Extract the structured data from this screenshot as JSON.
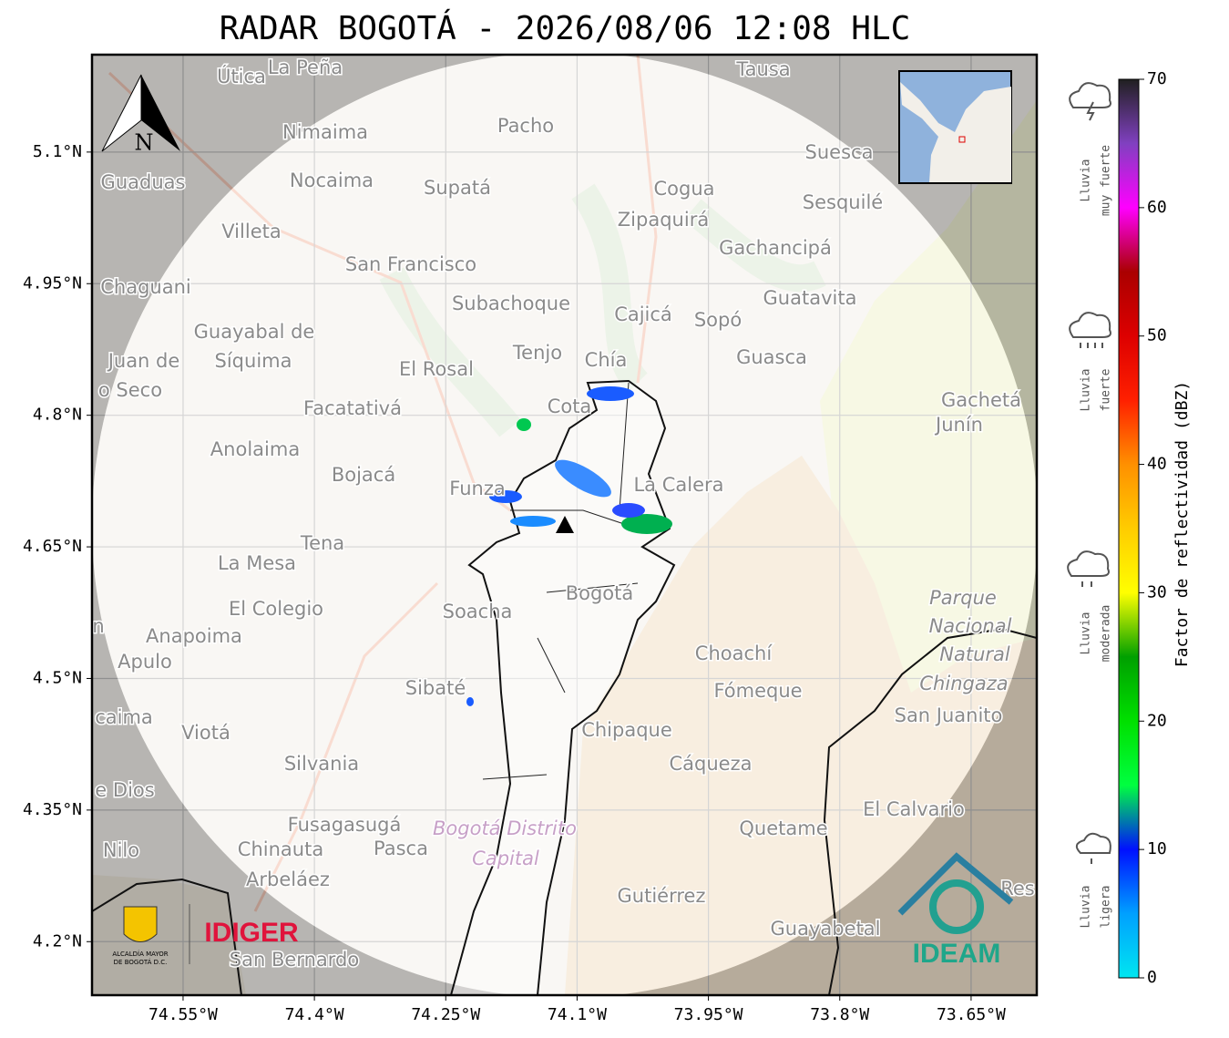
{
  "header": {
    "title": "RADAR BOGOTÁ - 2026/08/06 12:08 HLC"
  },
  "map": {
    "lon_range": [
      -74.654,
      -73.575
    ],
    "lat_range": [
      4.139,
      5.211
    ],
    "lon_ticks": [
      {
        "value": -74.55,
        "label": "74.55°W"
      },
      {
        "value": -74.4,
        "label": "74.4°W"
      },
      {
        "value": -74.25,
        "label": "74.25°W"
      },
      {
        "value": -74.1,
        "label": "74.1°W"
      },
      {
        "value": -73.95,
        "label": "73.95°W"
      },
      {
        "value": -73.8,
        "label": "73.8°W"
      },
      {
        "value": -73.65,
        "label": "73.65°W"
      }
    ],
    "lat_ticks": [
      {
        "value": 5.1,
        "label": "5.1°N"
      },
      {
        "value": 4.95,
        "label": "4.95°N"
      },
      {
        "value": 4.8,
        "label": "4.8°N"
      },
      {
        "value": 4.65,
        "label": "4.65°N"
      },
      {
        "value": 4.5,
        "label": "4.5°N"
      },
      {
        "value": 4.35,
        "label": "4.35°N"
      },
      {
        "value": 4.2,
        "label": "4.2°N"
      }
    ],
    "north": "N",
    "places": [
      "Útica",
      "La Peña",
      "Tausa",
      "Pacho",
      "Nimaima",
      "Guaduas",
      "Nocaima",
      "Supatá",
      "Cogua",
      "Suesca",
      "Sesquilé",
      "Zipaquirá",
      "Villeta",
      "Gachancipá",
      "San Francisco",
      "Chaguani",
      "Guatavita",
      "Subachoque",
      "Cajicá",
      "Sopó",
      "Guayabal de",
      "Síquima",
      "Tenjo",
      "Juan de",
      "Chía",
      "Guasca",
      "El Rosal",
      "o Seco",
      "Gachetá",
      "Junín",
      "Facatativá",
      "Cota",
      "Anolaima",
      "Bojacá",
      "Funza",
      "La Calera",
      "Tena",
      "La Mesa",
      "Bogotá",
      "Parque",
      "Nacional",
      "Natural",
      "Chingaza",
      "El Colegio",
      "Soacha",
      "Anapoima",
      "Apulo",
      "Choachí",
      "Fómeque",
      "Sibaté",
      "San Juanito",
      "caima",
      "Viotá",
      "Chipaque",
      "Silvania",
      "Cáqueza",
      "e Dios",
      "El Calvario",
      "Fusagasugá",
      "Quetame",
      "Bogotá Distrito",
      "Capital",
      "Nilo",
      "Chinauta",
      "Pasca",
      "Arbeláez",
      "Gutiérrez",
      "Guayabetal",
      "San Bernardo",
      "Res",
      "n"
    ]
  },
  "colorbar": {
    "label": "Factor de reflectividad (dBZ)",
    "range": [
      0,
      70
    ],
    "ticks": [
      0,
      10,
      20,
      30,
      40,
      50,
      60,
      70
    ],
    "colors": [
      "#00e6f0",
      "#00a0ff",
      "#0010ff",
      "#00ff40",
      "#00e000",
      "#00a000",
      "#ffff00",
      "#ffcc00",
      "#ff9000",
      "#ff2000",
      "#dd0000",
      "#aa0000",
      "#ff00ff",
      "#8040c0",
      "#202020"
    ]
  },
  "legend": [
    [
      "Lluvia",
      "muy fuerte"
    ],
    [
      "Lluvia",
      "fuerte"
    ],
    [
      "Lluvia",
      "moderada"
    ],
    [
      "Lluvia",
      "ligera"
    ]
  ],
  "logos": {
    "idiger": "IDIGER",
    "ideam": "IDEAM",
    "alcaldia": [
      "ALCALDÍA MAYOR",
      "DE BOGOTÁ D.C."
    ]
  }
}
